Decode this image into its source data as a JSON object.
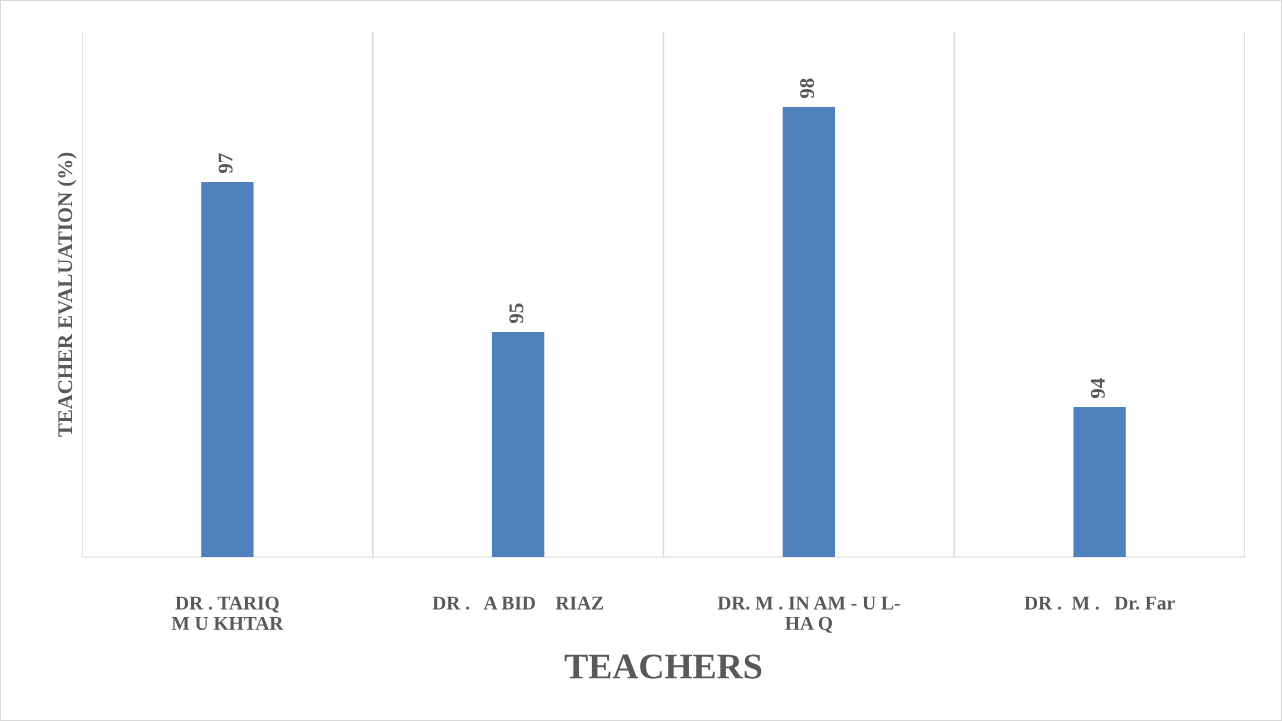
{
  "chart_data": {
    "type": "bar",
    "categories": [
      "DR . TARIQ\nM U KHTAR",
      "DR .   A BID    RIAZ",
      "DR. M . IN AM - U L-\nHA Q",
      "DR .  M .   Dr. Far"
    ],
    "values": [
      97,
      95,
      98,
      94
    ],
    "color": "#4f81bd",
    "xlabel": "TEACHERS",
    "ylabel": "TEACHER EVALUATION (%)",
    "ylim": [
      92,
      99
    ],
    "tick_labels": "x",
    "data_labels": true,
    "grid": "x",
    "legend": false
  }
}
